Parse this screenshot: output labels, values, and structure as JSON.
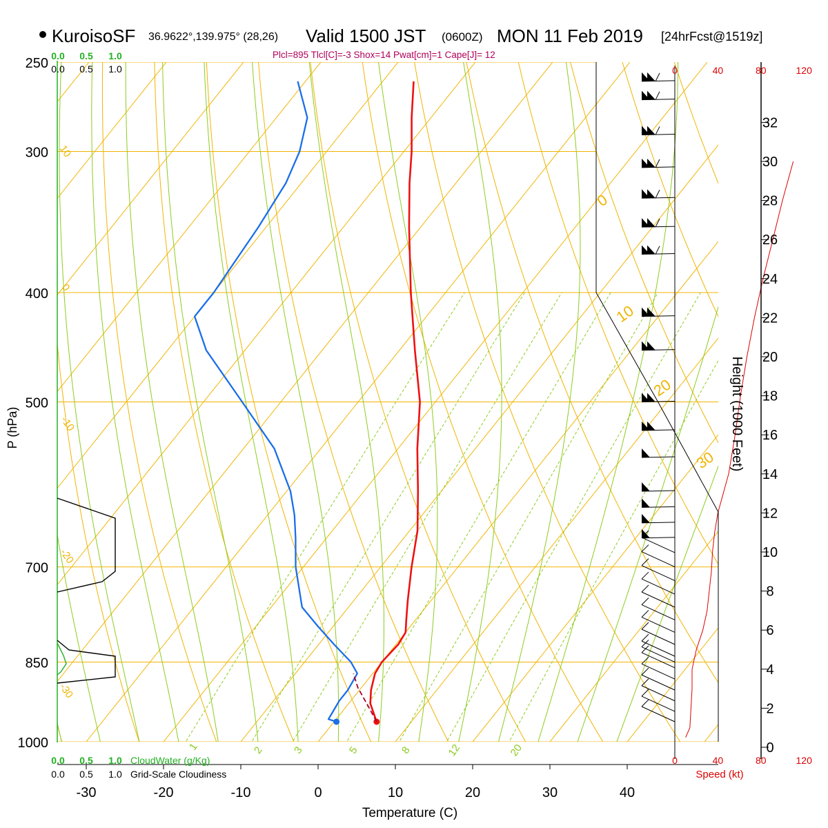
{
  "header": {
    "station": "KuroisoSF",
    "coords": "36.9622°,139.975° (28,26)",
    "valid": "Valid 1500 JST",
    "utc": "(0600Z)",
    "date": "MON 11 Feb 2019",
    "forecast": "[24hrFcst@1519z]",
    "indices": "Plcl=895 Tlcl[C]=-3 Shox=14 Pwat[cm]=1 Cape[J]= 12"
  },
  "colors": {
    "temperature": "#ee1111",
    "dewpoint": "#1a6ee8",
    "isotherm": "#f0b400",
    "dry_adiabat": "#f0b400",
    "moist_adiabat": "#8ccc1e",
    "mixing_ratio": "#8ccc1e",
    "cloud_water": "#22b022",
    "wind_speed": "#dd0000"
  },
  "chart_data": {
    "type": "skew-t",
    "title": "KuroisoSF Valid 1500 JST (0600Z) MON 11 Feb 2019",
    "xlabel": "Temperature (C)",
    "ylabel": "P (hPa)",
    "y2label": "Height (1000 Feet)",
    "x_ticks": [
      -30,
      -20,
      -10,
      0,
      10,
      20,
      30,
      40
    ],
    "pressure_ticks": [
      250,
      300,
      400,
      500,
      700,
      850,
      1000
    ],
    "height_ticks_kft": [
      0,
      2,
      4,
      6,
      8,
      10,
      12,
      14,
      16,
      18,
      20,
      22,
      24,
      26,
      28,
      30,
      32
    ],
    "isotherm_label_values": [
      10,
      0,
      -10,
      -20,
      -30,
      -40
    ],
    "dry_adiabat_label_values": [
      0,
      10,
      20,
      30
    ],
    "mixing_ratio_label_values": [
      1,
      2,
      3,
      5,
      8,
      12,
      20
    ],
    "temperature_profile": [
      {
        "p": 960,
        "t": 5.5
      },
      {
        "p": 925,
        "t": 2.8
      },
      {
        "p": 900,
        "t": 1.5
      },
      {
        "p": 870,
        "t": 0.3
      },
      {
        "p": 850,
        "t": 0.0
      },
      {
        "p": 820,
        "t": 0.3
      },
      {
        "p": 800,
        "t": 0.0
      },
      {
        "p": 780,
        "t": -1.2
      },
      {
        "p": 750,
        "t": -3.0
      },
      {
        "p": 700,
        "t": -6.0
      },
      {
        "p": 650,
        "t": -9.0
      },
      {
        "p": 600,
        "t": -13.0
      },
      {
        "p": 550,
        "t": -17.5
      },
      {
        "p": 500,
        "t": -22.0
      },
      {
        "p": 450,
        "t": -28.0
      },
      {
        "p": 400,
        "t": -34.5
      },
      {
        "p": 350,
        "t": -41.5
      },
      {
        "p": 320,
        "t": -46.0
      },
      {
        "p": 300,
        "t": -49.0
      },
      {
        "p": 280,
        "t": -52.5
      },
      {
        "p": 260,
        "t": -56.0
      }
    ],
    "dewpoint_profile": [
      {
        "p": 960,
        "t": 0.3
      },
      {
        "p": 955,
        "t": -1.0
      },
      {
        "p": 940,
        "t": -1.2
      },
      {
        "p": 920,
        "t": -1.5
      },
      {
        "p": 900,
        "t": -1.5
      },
      {
        "p": 870,
        "t": -2.0
      },
      {
        "p": 850,
        "t": -4.0
      },
      {
        "p": 820,
        "t": -8.0
      },
      {
        "p": 790,
        "t": -12.0
      },
      {
        "p": 760,
        "t": -16.0
      },
      {
        "p": 700,
        "t": -21.0
      },
      {
        "p": 660,
        "t": -24.0
      },
      {
        "p": 630,
        "t": -26.5
      },
      {
        "p": 600,
        "t": -29.5
      },
      {
        "p": 550,
        "t": -36.0
      },
      {
        "p": 500,
        "t": -45.0
      },
      {
        "p": 450,
        "t": -55.0
      },
      {
        "p": 420,
        "t": -60.0
      },
      {
        "p": 400,
        "t": -60.0
      },
      {
        "p": 350,
        "t": -61.0
      },
      {
        "p": 320,
        "t": -62.0
      },
      {
        "p": 300,
        "t": -63.5
      },
      {
        "p": 280,
        "t": -66.0
      },
      {
        "p": 260,
        "t": -71.0
      }
    ],
    "parcel_profile": [
      {
        "p": 960,
        "t": 5.5
      },
      {
        "p": 930,
        "t": 2.8
      },
      {
        "p": 895,
        "t": -0.5
      },
      {
        "p": 870,
        "t": -2.5
      }
    ],
    "wind_speed_axis": {
      "label": "Speed (kt)",
      "ticks": [
        0,
        40,
        80,
        120
      ]
    },
    "wind_speed_profile": [
      {
        "h": 0.5,
        "s": 10
      },
      {
        "h": 1.0,
        "s": 14
      },
      {
        "h": 2.0,
        "s": 15
      },
      {
        "h": 3.0,
        "s": 16
      },
      {
        "h": 4.0,
        "s": 16
      },
      {
        "h": 5.0,
        "s": 20
      },
      {
        "h": 6.0,
        "s": 26
      },
      {
        "h": 7.0,
        "s": 30
      },
      {
        "h": 8.0,
        "s": 32
      },
      {
        "h": 9.0,
        "s": 34
      },
      {
        "h": 10.0,
        "s": 35
      },
      {
        "h": 11.0,
        "s": 37
      },
      {
        "h": 12.0,
        "s": 40
      },
      {
        "h": 14.0,
        "s": 50
      },
      {
        "h": 16.0,
        "s": 56
      },
      {
        "h": 18.0,
        "s": 61
      },
      {
        "h": 20.0,
        "s": 67
      },
      {
        "h": 22.0,
        "s": 74
      },
      {
        "h": 24.0,
        "s": 82
      },
      {
        "h": 26.0,
        "s": 91
      },
      {
        "h": 28.0,
        "s": 100
      },
      {
        "h": 30.0,
        "s": 110
      }
    ],
    "wind_barb_levels_hpa": [
      960,
      940,
      920,
      900,
      880,
      860,
      850,
      840,
      820,
      800,
      780,
      760,
      740,
      720,
      700,
      680,
      660,
      640,
      620,
      600,
      560,
      530,
      500,
      450,
      420,
      370,
      350,
      330,
      310,
      290,
      270,
      260
    ],
    "cloudiness_axis": {
      "cloud_water_label": "CloudWater (g/Kg)",
      "cloudiness_label": "Grid-Scale Cloudiness",
      "ticks": [
        "0.0",
        "0.5",
        "1.0"
      ],
      "cloudiness_layers": [
        {
          "p_bottom": 745,
          "p_top": 620,
          "fraction": 1.0
        },
        {
          "p_bottom": 870,
          "p_top": 835,
          "fraction": 1.0
        }
      ]
    }
  }
}
